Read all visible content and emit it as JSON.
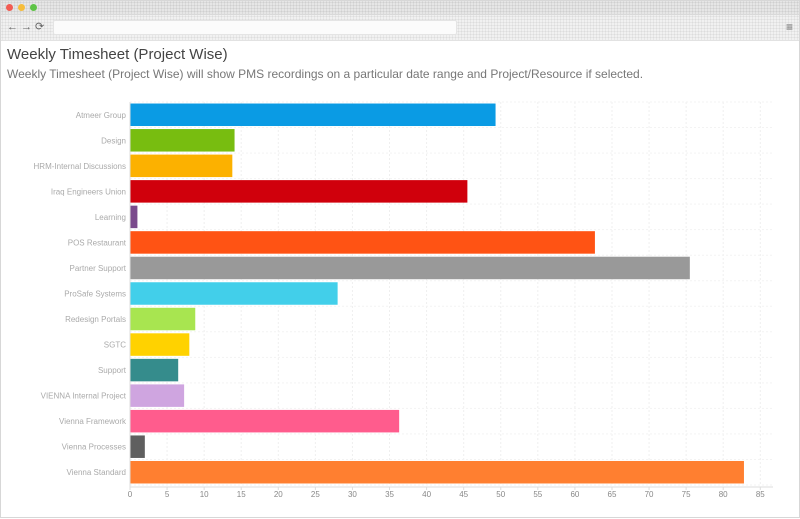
{
  "browser": {
    "back_icon": "←",
    "forward_icon": "→",
    "reload_icon": "⟳",
    "menu_icon": "≡",
    "address_text": ""
  },
  "page": {
    "title": "Weekly Timesheet (Project Wise)",
    "subtitle": "Weekly Timesheet (Project Wise) will show PMS recordings on a particular date range and Project/Resource if selected."
  },
  "chart_data": {
    "type": "bar",
    "orientation": "horizontal",
    "categories": [
      "Atmeer Group",
      "Design",
      "HRM-Internal Discussions",
      "Iraq Engineers Union",
      "Learning",
      "POS Restaurant",
      "Partner Support",
      "ProSafe Systems",
      "Redesign Portals",
      "SGTC",
      "Support",
      "VIENNA Internal Project",
      "Vienna Framework",
      "Vienna Processes",
      "Vienna Standard"
    ],
    "values": [
      49.3,
      14.1,
      13.8,
      45.5,
      1.0,
      62.7,
      75.5,
      28.0,
      8.8,
      8.0,
      6.5,
      7.3,
      36.3,
      2.0,
      82.8
    ],
    "colors": [
      "#0a9be4",
      "#78bd10",
      "#fcb100",
      "#d0000c",
      "#7a4a8c",
      "#ff5314",
      "#999999",
      "#42cfea",
      "#a8e550",
      "#ffd200",
      "#358c8c",
      "#cfa5e0",
      "#ff5c8d",
      "#5f5f5f",
      "#ff7f30"
    ],
    "x_ticks": [
      0,
      5,
      10,
      15,
      20,
      25,
      30,
      35,
      40,
      45,
      50,
      55,
      60,
      65,
      70,
      75,
      80,
      85
    ],
    "xlim": [
      0,
      87
    ],
    "grid": true,
    "title": "",
    "xlabel": "",
    "ylabel": ""
  }
}
